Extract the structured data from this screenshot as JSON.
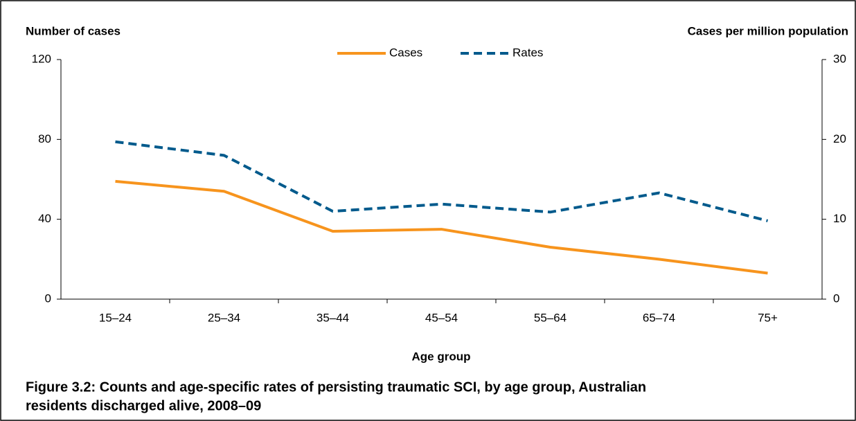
{
  "chart_data": {
    "type": "line",
    "y_label": "Number of cases",
    "y2_label": "Cases per million population",
    "x_label": "Age group",
    "caption": [
      "Figure 3.2: Counts and age-specific rates of persisting traumatic SCI, by age group, Australian",
      "residents discharged alive, 2008–09"
    ],
    "categories": [
      "15–24",
      "25–34",
      "35–44",
      "45–54",
      "55–64",
      "65–74",
      "75+"
    ],
    "series": [
      {
        "name": "Cases",
        "color": "#f7941d",
        "dash": false,
        "values": [
          59,
          54,
          34,
          35,
          26,
          20,
          13
        ]
      },
      {
        "name": "Rates",
        "color": "#005a8c",
        "dash": true,
        "axis": "y2",
        "values": [
          19.7,
          18.0,
          11.0,
          11.9,
          10.9,
          13.3,
          9.8
        ]
      }
    ],
    "ylim": [
      0,
      120
    ],
    "yticks": [
      0,
      40,
      80,
      120
    ],
    "y2lim": [
      0,
      30
    ],
    "y2ticks": [
      0,
      10,
      20,
      30
    ],
    "grid": false,
    "legend": "top"
  }
}
